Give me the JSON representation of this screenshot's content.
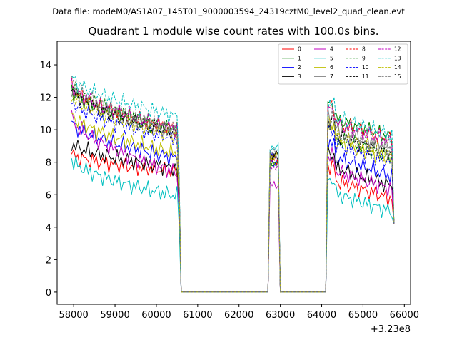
{
  "chart_data": {
    "type": "line",
    "suptitle": "Data file: modeM0/AS1A07_145T01_9000003594_24319cztM0_level2_quad_clean.evt",
    "title": "Quadrant 1 module wise count rates with 100.0s bins.",
    "x_offset_label": "+3.23e8",
    "xlim": [
      57600,
      66150
    ],
    "ylim": [
      -0.75,
      15.45
    ],
    "x_ticks": [
      58000,
      59000,
      60000,
      61000,
      62000,
      63000,
      64000,
      65000,
      66000
    ],
    "x_tick_labels": [
      "58000",
      "59000",
      "60000",
      "61000",
      "62000",
      "63000",
      "64000",
      "65000",
      "66000"
    ],
    "y_ticks": [
      0,
      2,
      4,
      6,
      8,
      10,
      12,
      14
    ],
    "y_tick_labels": [
      "0",
      "2",
      "4",
      "6",
      "8",
      "10",
      "12",
      "14"
    ],
    "grid": false,
    "legend_placement": "top-right",
    "segments": [
      [
        57950,
        60550
      ],
      [
        60650,
        62650
      ],
      [
        62750,
        62950
      ],
      [
        63050,
        64050
      ],
      [
        64150,
        65750
      ]
    ],
    "series": [
      {
        "name": "0",
        "color": "#ff0000",
        "dash": "solid",
        "level1": 8.5,
        "level2": 7.4,
        "level3": 8.2,
        "level4": 7.0
      },
      {
        "name": "1",
        "color": "#008000",
        "dash": "solid",
        "level1": 12.5,
        "level2": 10.0,
        "level3": 7.9,
        "level4": 10.8
      },
      {
        "name": "2",
        "color": "#0000ff",
        "dash": "solid",
        "level1": 10.5,
        "level2": 8.2,
        "level3": 8.3,
        "level4": 8.4
      },
      {
        "name": "3",
        "color": "#000000",
        "dash": "solid",
        "level1": 9.2,
        "level2": 7.6,
        "level3": 8.5,
        "level4": 7.8
      },
      {
        "name": "4",
        "color": "#bf00bf",
        "dash": "solid",
        "level1": 10.8,
        "level2": 7.3,
        "level3": 6.6,
        "level4": 7.6
      },
      {
        "name": "5",
        "color": "#00bfbf",
        "dash": "solid",
        "level1": 8.2,
        "level2": 5.9,
        "level3": 8.9,
        "level4": 6.2
      },
      {
        "name": "6",
        "color": "#bfbf00",
        "dash": "solid",
        "level1": 11.0,
        "level2": 8.5,
        "level3": 8.0,
        "level4": 9.4
      },
      {
        "name": "7",
        "color": "#808080",
        "dash": "solid",
        "level1": 12.5,
        "level2": 9.8,
        "level3": 8.2,
        "level4": 10.2
      },
      {
        "name": "8",
        "color": "#ff0000",
        "dash": "dashed",
        "level1": 12.7,
        "level2": 10.0,
        "level3": 8.1,
        "level4": 10.6
      },
      {
        "name": "9",
        "color": "#008000",
        "dash": "dashed",
        "level1": 12.8,
        "level2": 9.9,
        "level3": 7.9,
        "level4": 9.6
      },
      {
        "name": "10",
        "color": "#0000ff",
        "dash": "dashed",
        "level1": 11.8,
        "level2": 9.4,
        "level3": 8.0,
        "level4": 9.2
      },
      {
        "name": "11",
        "color": "#000000",
        "dash": "dashed",
        "level1": 12.5,
        "level2": 9.7,
        "level3": 8.3,
        "level4": 9.8
      },
      {
        "name": "12",
        "color": "#bf00bf",
        "dash": "dashed",
        "level1": 12.8,
        "level2": 10.0,
        "level3": 7.7,
        "level4": 10.5
      },
      {
        "name": "13",
        "color": "#00bfbf",
        "dash": "dashed",
        "level1": 13.3,
        "level2": 10.8,
        "level3": 8.8,
        "level4": 10.9
      },
      {
        "name": "14",
        "color": "#bfbf00",
        "dash": "dashed",
        "level1": 12.2,
        "level2": 9.6,
        "level3": 8.4,
        "level4": 9.7
      },
      {
        "name": "15",
        "color": "#808080",
        "dash": "dashed",
        "level1": 13.0,
        "level2": 9.9,
        "level3": 8.6,
        "level4": 9.9
      }
    ]
  }
}
